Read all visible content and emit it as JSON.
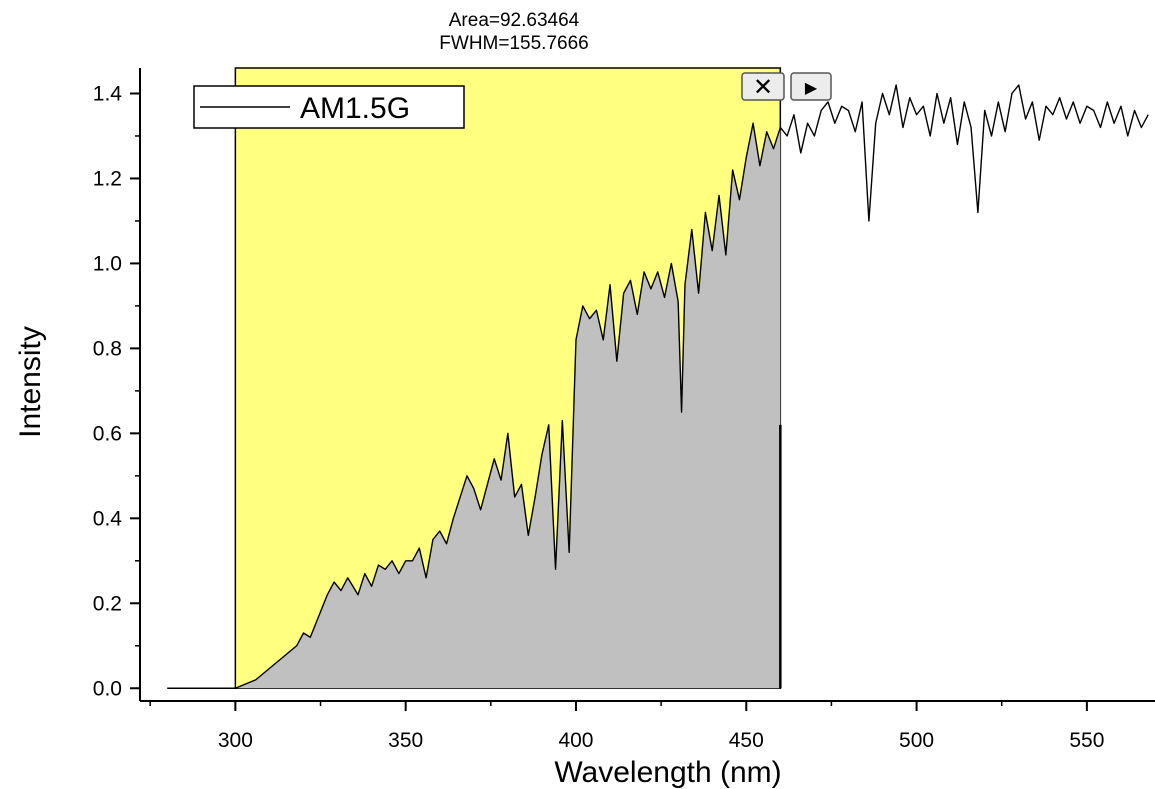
{
  "chart_data": {
    "type": "line",
    "title": "",
    "xlabel": "Wavelength (nm)",
    "ylabel": "Intensity",
    "xlim": [
      272,
      570
    ],
    "ylim": [
      -0.03,
      1.46
    ],
    "x_ticks": [
      300,
      350,
      400,
      450,
      500,
      550
    ],
    "y_ticks": [
      0.0,
      0.2,
      0.4,
      0.6,
      0.8,
      1.0,
      1.2,
      1.4
    ],
    "x_tick_labels": [
      "300",
      "350",
      "400",
      "450",
      "500",
      "550"
    ],
    "y_tick_labels": [
      "0.0",
      "0.2",
      "0.4",
      "0.6",
      "0.8",
      "1.0",
      "1.2",
      "1.4"
    ],
    "grid": false,
    "legend": {
      "position": "top-left",
      "entries": [
        "AM1.5G"
      ]
    },
    "annotations": {
      "area": "Area=92.63464",
      "fwhm": "FWHM=155.7666"
    },
    "integration_range": [
      300,
      460
    ],
    "colors": {
      "highlight": "#ffff80",
      "fill": "#c0c0c0",
      "line": "#000000"
    },
    "series": [
      {
        "name": "AM1.5G",
        "x": [
          280,
          295,
          300,
          303,
          306,
          309,
          312,
          315,
          318,
          320,
          322,
          325,
          327,
          329,
          331,
          333,
          336,
          338,
          340,
          342,
          344,
          346,
          348,
          350,
          352,
          354,
          356,
          358,
          360,
          362,
          364,
          366,
          368,
          370,
          372,
          374,
          376,
          378,
          380,
          382,
          384,
          386,
          388,
          390,
          392,
          394,
          396,
          398,
          400,
          402,
          404,
          406,
          408,
          410,
          412,
          414,
          416,
          418,
          420,
          422,
          424,
          426,
          428,
          430,
          431,
          432,
          434,
          436,
          438,
          440,
          442,
          444,
          446,
          448,
          450,
          452,
          454,
          456,
          458,
          460,
          462,
          464,
          466,
          468,
          470,
          472,
          474,
          476,
          478,
          480,
          482,
          484,
          486,
          488,
          490,
          492,
          494,
          496,
          498,
          500,
          502,
          504,
          506,
          508,
          510,
          512,
          514,
          516,
          518,
          520,
          522,
          524,
          526,
          528,
          530,
          532,
          534,
          536,
          538,
          540,
          542,
          544,
          546,
          548,
          550,
          552,
          554,
          556,
          558,
          560,
          562,
          564,
          566,
          568
        ],
        "y": [
          0.0,
          0.0,
          0.0,
          0.01,
          0.02,
          0.04,
          0.06,
          0.08,
          0.1,
          0.13,
          0.12,
          0.18,
          0.22,
          0.25,
          0.23,
          0.26,
          0.22,
          0.27,
          0.24,
          0.29,
          0.28,
          0.3,
          0.27,
          0.3,
          0.3,
          0.33,
          0.26,
          0.35,
          0.37,
          0.34,
          0.4,
          0.45,
          0.5,
          0.47,
          0.42,
          0.48,
          0.54,
          0.49,
          0.6,
          0.45,
          0.48,
          0.36,
          0.45,
          0.55,
          0.62,
          0.28,
          0.63,
          0.32,
          0.82,
          0.9,
          0.87,
          0.89,
          0.82,
          0.95,
          0.77,
          0.93,
          0.96,
          0.88,
          0.98,
          0.94,
          0.98,
          0.92,
          1.0,
          0.91,
          0.65,
          0.95,
          1.08,
          0.93,
          1.12,
          1.03,
          1.16,
          1.02,
          1.22,
          1.15,
          1.25,
          1.33,
          1.23,
          1.31,
          1.27,
          1.32,
          1.3,
          1.35,
          1.26,
          1.33,
          1.3,
          1.36,
          1.38,
          1.33,
          1.37,
          1.36,
          1.31,
          1.38,
          1.1,
          1.33,
          1.4,
          1.35,
          1.42,
          1.32,
          1.39,
          1.35,
          1.37,
          1.3,
          1.4,
          1.33,
          1.39,
          1.28,
          1.38,
          1.32,
          1.12,
          1.36,
          1.3,
          1.38,
          1.31,
          1.4,
          1.42,
          1.34,
          1.38,
          1.29,
          1.37,
          1.35,
          1.39,
          1.34,
          1.38,
          1.33,
          1.37,
          1.36,
          1.32,
          1.38,
          1.33,
          1.37,
          1.3,
          1.36,
          1.32,
          1.35
        ]
      }
    ]
  }
}
